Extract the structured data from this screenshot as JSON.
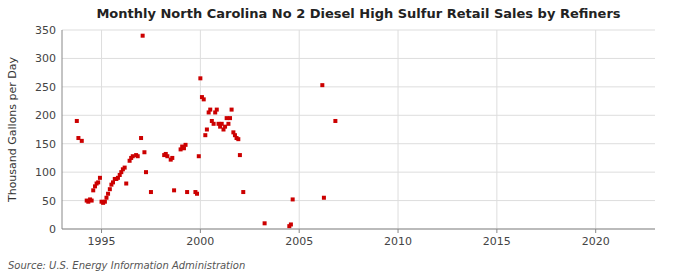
{
  "chart_data": {
    "type": "scatter",
    "title": "Monthly North Carolina No 2 Diesel High Sulfur Retail Sales by Refiners",
    "y_label": "Thousand Gallons per Day",
    "annotations": [
      "Source: U.S. Energy Information Administration"
    ],
    "color": "#cc0000",
    "marker": "square",
    "grid": true,
    "xlim": [
      1993.0,
      2023.0
    ],
    "ylim": [
      0,
      350
    ],
    "xticks": [
      1995,
      2000,
      2005,
      2010,
      2015,
      2020
    ],
    "yticks": [
      0,
      50,
      100,
      150,
      200,
      250,
      300,
      350
    ],
    "x": [
      1993.75,
      1993.83,
      1994.0,
      1994.25,
      1994.33,
      1994.42,
      1994.5,
      1994.58,
      1994.67,
      1994.75,
      1994.83,
      1994.92,
      1995.0,
      1995.08,
      1995.17,
      1995.25,
      1995.33,
      1995.42,
      1995.5,
      1995.58,
      1995.67,
      1995.75,
      1995.83,
      1995.92,
      1996.0,
      1996.08,
      1996.17,
      1996.25,
      1996.42,
      1996.5,
      1996.58,
      1996.75,
      1996.83,
      1997.0,
      1997.17,
      1997.25,
      1997.5,
      1998.17,
      1998.25,
      1998.33,
      1998.5,
      1998.58,
      1998.67,
      1999.0,
      1999.08,
      1999.17,
      1999.25,
      1999.33,
      1999.75,
      1999.83,
      1999.92,
      2000.0,
      2000.08,
      2000.17,
      2000.25,
      2000.33,
      2000.42,
      2000.5,
      2000.58,
      2000.67,
      2000.75,
      2000.83,
      2000.92,
      2001.0,
      2001.08,
      2001.17,
      2001.25,
      2001.33,
      2001.42,
      2001.5,
      2001.58,
      2001.67,
      2001.75,
      2001.83,
      2001.92,
      2002.0,
      2002.17,
      2003.25,
      2004.5,
      2004.58,
      2004.67,
      2006.17,
      2006.25,
      2006.83,
      1997.08
    ],
    "y": [
      190,
      160,
      155,
      50,
      48,
      52,
      50,
      68,
      75,
      80,
      82,
      90,
      48,
      46,
      48,
      55,
      62,
      70,
      78,
      82,
      88,
      88,
      90,
      95,
      100,
      105,
      108,
      80,
      120,
      125,
      128,
      130,
      128,
      160,
      135,
      100,
      65,
      130,
      132,
      128,
      122,
      125,
      68,
      140,
      145,
      142,
      148,
      65,
      65,
      62,
      128,
      265,
      232,
      228,
      165,
      175,
      205,
      210,
      190,
      185,
      205,
      210,
      185,
      180,
      185,
      175,
      180,
      195,
      185,
      195,
      210,
      170,
      165,
      160,
      158,
      130,
      65,
      10,
      5,
      8,
      52,
      253,
      55,
      190,
      340
    ]
  }
}
